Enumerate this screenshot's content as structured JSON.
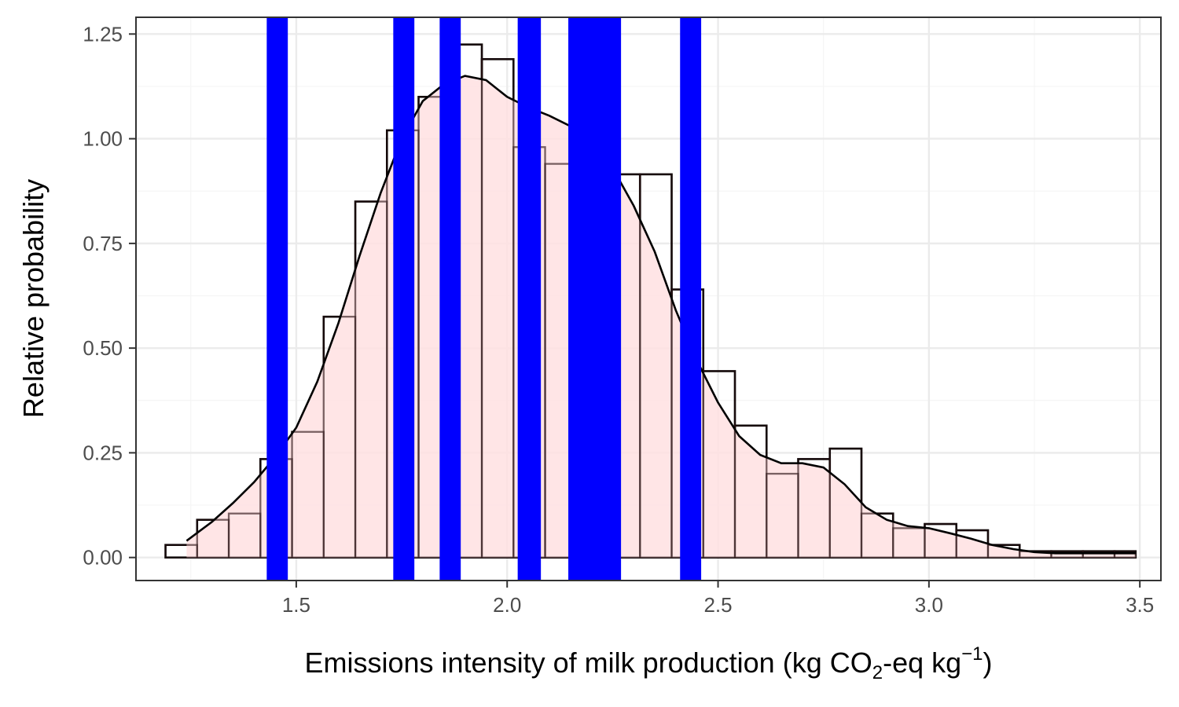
{
  "chart_data": {
    "type": "bar",
    "subtype": "histogram with density curve and vertical bands",
    "xlabel": {
      "main": "Emissions intensity of milk production (kg CO",
      "sub": "2",
      "mid": "-eq kg",
      "sup": "−1",
      "end": ")"
    },
    "ylabel": "Relative probability",
    "xlim": [
      1.12,
      3.55
    ],
    "ylim": [
      -0.055,
      1.29
    ],
    "x_ticks": [
      1.5,
      2.0,
      2.5,
      3.0,
      3.5
    ],
    "x_tick_labels": [
      "1.5",
      "2.0",
      "2.5",
      "3.0",
      "3.5"
    ],
    "y_ticks": [
      0.0,
      0.25,
      0.5,
      0.75,
      1.0,
      1.25
    ],
    "y_tick_labels": [
      "0.00",
      "0.25",
      "0.50",
      "0.75",
      "1.00",
      "1.25"
    ],
    "grid": true,
    "legend": "none",
    "colors": {
      "panel_border": "#333333",
      "grid_major": "#ebebeb",
      "grid_minor": "#f5f5f5",
      "hist_outline": "#000000",
      "density_fill": "#ffe0e2",
      "density_line": "#000000",
      "bands": "#0000ff"
    },
    "histogram": {
      "bin_edges": [
        1.19,
        1.265,
        1.34,
        1.415,
        1.49,
        1.565,
        1.64,
        1.715,
        1.79,
        1.865,
        1.94,
        2.015,
        2.09,
        2.165,
        2.24,
        2.315,
        2.39,
        2.465,
        2.54,
        2.615,
        2.69,
        2.765,
        2.84,
        2.915,
        2.99,
        3.065,
        3.14,
        3.215,
        3.29,
        3.365,
        3.44,
        3.49
      ],
      "values": [
        0.03,
        0.09,
        0.105,
        0.235,
        0.3,
        0.575,
        0.85,
        1.02,
        1.1,
        1.225,
        1.19,
        0.98,
        0.94,
        0.975,
        0.915,
        0.915,
        0.64,
        0.445,
        0.315,
        0.2,
        0.235,
        0.26,
        0.105,
        0.07,
        0.08,
        0.065,
        0.03,
        0.015,
        0.015,
        0.015,
        0.015
      ]
    },
    "density": {
      "x": [
        1.24,
        1.3,
        1.35,
        1.4,
        1.45,
        1.5,
        1.55,
        1.6,
        1.65,
        1.7,
        1.75,
        1.8,
        1.85,
        1.9,
        1.95,
        2.0,
        2.05,
        2.1,
        2.15,
        2.2,
        2.25,
        2.3,
        2.35,
        2.4,
        2.45,
        2.5,
        2.55,
        2.6,
        2.65,
        2.7,
        2.75,
        2.8,
        2.85,
        2.9,
        2.95,
        3.0,
        3.05,
        3.1,
        3.15,
        3.2,
        3.25,
        3.3,
        3.35,
        3.4,
        3.45,
        3.49
      ],
      "y": [
        0.04,
        0.085,
        0.13,
        0.18,
        0.24,
        0.31,
        0.42,
        0.56,
        0.72,
        0.87,
        1.0,
        1.09,
        1.13,
        1.15,
        1.14,
        1.1,
        1.075,
        1.055,
        1.03,
        0.99,
        0.93,
        0.84,
        0.73,
        0.59,
        0.47,
        0.37,
        0.29,
        0.245,
        0.225,
        0.225,
        0.215,
        0.175,
        0.12,
        0.09,
        0.075,
        0.07,
        0.058,
        0.045,
        0.03,
        0.02,
        0.013,
        0.01,
        0.01,
        0.01,
        0.01,
        0.01
      ]
    },
    "bands": [
      {
        "from": 1.43,
        "to": 1.48
      },
      {
        "from": 1.73,
        "to": 1.78
      },
      {
        "from": 1.84,
        "to": 1.89
      },
      {
        "from": 2.025,
        "to": 2.08
      },
      {
        "from": 2.145,
        "to": 2.27
      },
      {
        "from": 2.41,
        "to": 2.46
      }
    ]
  }
}
